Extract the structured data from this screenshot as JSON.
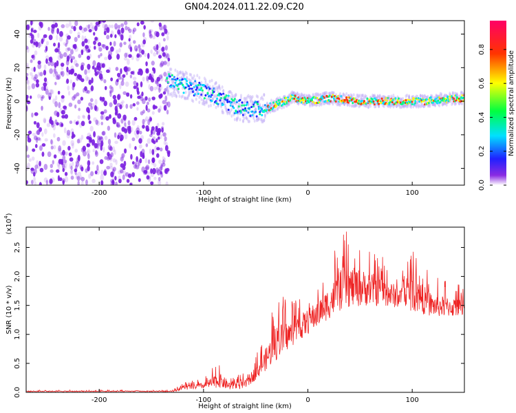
{
  "title": "GN04.2024.011.22.09.C20",
  "colors": {
    "snr_line": "#ee2222",
    "spectrogram_noise": "#7a1ee0",
    "axis": "#000000"
  },
  "chart_data": [
    {
      "type": "heatmap",
      "panel": "spectrogram",
      "xlabel": "Height of straight line (km)",
      "ylabel": "Frequency (Hz)",
      "xlim": [
        -270,
        150
      ],
      "ylim": [
        -50,
        48
      ],
      "xticks": [
        -200,
        -100,
        0,
        100
      ],
      "yticks": [
        -40,
        -20,
        0,
        20,
        40
      ],
      "grid": false,
      "colorbar": {
        "label": "Normalized spectral amplitude",
        "range": [
          0.0,
          0.97
        ],
        "ticks": [
          "0.0",
          "0.2",
          "0.4",
          "0.6",
          "0.8"
        ],
        "colormap": "rainbow"
      },
      "features": {
        "broadband_noise_region_km": [
          -270,
          -133
        ],
        "signal_track": [
          {
            "x": -135,
            "y": 12
          },
          {
            "x": -110,
            "y": 8
          },
          {
            "x": -90,
            "y": 4
          },
          {
            "x": -70,
            "y": -3
          },
          {
            "x": -55,
            "y": -5
          },
          {
            "x": -40,
            "y": -4
          },
          {
            "x": -30,
            "y": -2
          },
          {
            "x": -15,
            "y": 2
          },
          {
            "x": 0,
            "y": 0
          },
          {
            "x": 20,
            "y": 2
          },
          {
            "x": 50,
            "y": 0
          },
          {
            "x": 80,
            "y": 0
          },
          {
            "x": 110,
            "y": 0
          },
          {
            "x": 150,
            "y": 2
          }
        ]
      }
    },
    {
      "type": "line",
      "panel": "snr",
      "xlabel": "Height of straight line (km)",
      "ylabel": "SNR (10 * v/v)",
      "y_multiplier": "(x10",
      "y_multiplier_exp": "4",
      "xlim": [
        -270,
        150
      ],
      "ylim": [
        0,
        2.85
      ],
      "xticks": [
        -200,
        -100,
        0,
        100
      ],
      "yticks": [
        "0.0",
        "0.5",
        "1.0",
        "1.5",
        "2.0",
        "2.5"
      ],
      "grid": false,
      "series": [
        {
          "color": "#ee2222",
          "envelope": [
            {
              "x": -270,
              "base": 0.01,
              "peak": 0.04
            },
            {
              "x": -130,
              "base": 0.01,
              "peak": 0.04
            },
            {
              "x": -120,
              "base": 0.04,
              "peak": 0.17
            },
            {
              "x": -100,
              "base": 0.06,
              "peak": 0.25
            },
            {
              "x": -85,
              "base": 0.08,
              "peak": 0.55
            },
            {
              "x": -75,
              "base": 0.04,
              "peak": 0.3
            },
            {
              "x": -60,
              "base": 0.06,
              "peak": 0.35
            },
            {
              "x": -45,
              "base": 0.3,
              "peak": 0.8
            },
            {
              "x": -30,
              "base": 0.55,
              "peak": 1.7
            },
            {
              "x": -15,
              "base": 0.8,
              "peak": 1.6
            },
            {
              "x": 0,
              "base": 1.0,
              "peak": 1.8
            },
            {
              "x": 15,
              "base": 1.2,
              "peak": 2.1
            },
            {
              "x": 35,
              "base": 1.45,
              "peak": 2.8
            },
            {
              "x": 60,
              "base": 1.5,
              "peak": 2.55
            },
            {
              "x": 90,
              "base": 1.45,
              "peak": 2.1
            },
            {
              "x": 100,
              "base": 1.4,
              "peak": 2.55
            },
            {
              "x": 120,
              "base": 1.3,
              "peak": 2.0
            },
            {
              "x": 150,
              "base": 1.3,
              "peak": 1.85
            }
          ]
        }
      ]
    }
  ]
}
